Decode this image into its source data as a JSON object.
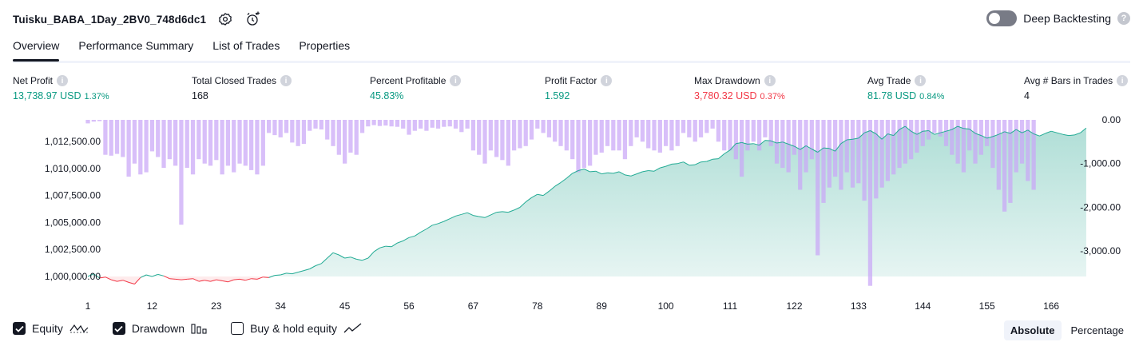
{
  "header": {
    "title": "Tuisku_BABA_1Day_2BV0_748d6dc1",
    "deep_backtesting_label": "Deep Backtesting",
    "deep_backtesting_enabled": false
  },
  "tabs": [
    {
      "label": "Overview",
      "active": true
    },
    {
      "label": "Performance Summary",
      "active": false
    },
    {
      "label": "List of Trades",
      "active": false
    },
    {
      "label": "Properties",
      "active": false
    }
  ],
  "metrics": [
    {
      "label": "Net Profit",
      "value": "13,738.97 USD",
      "pct": "1.37%",
      "color": "green"
    },
    {
      "label": "Total Closed Trades",
      "value": "168",
      "pct": "",
      "color": "neutral"
    },
    {
      "label": "Percent Profitable",
      "value": "45.83%",
      "pct": "",
      "color": "green"
    },
    {
      "label": "Profit Factor",
      "value": "1.592",
      "pct": "",
      "color": "green"
    },
    {
      "label": "Max Drawdown",
      "value": "3,780.32 USD",
      "pct": "0.37%",
      "color": "red"
    },
    {
      "label": "Avg Trade",
      "value": "81.78 USD",
      "pct": "0.84%",
      "color": "green"
    },
    {
      "label": "Avg # Bars in Trades",
      "value": "4",
      "pct": "",
      "color": "neutral"
    }
  ],
  "chart_data": {
    "type": "area",
    "x_ticks": [
      "1",
      "12",
      "23",
      "34",
      "45",
      "56",
      "67",
      "78",
      "89",
      "100",
      "111",
      "122",
      "133",
      "144",
      "155",
      "166"
    ],
    "y_left_ticks": [
      "1,012,500.00",
      "1,010,000.00",
      "1,007,500.00",
      "1,005,000.00",
      "1,002,500.00",
      "1,000,000.00"
    ],
    "y_right_ticks": [
      "0.00",
      "-1,000.00",
      "-2,000.00",
      "-3,000.00"
    ],
    "ylim_left": [
      999000,
      1014000
    ],
    "ylim_right": [
      -3800,
      0
    ],
    "xlim": [
      1,
      169
    ],
    "colors": {
      "equity_line": "#22ab94",
      "equity_fill": "#089981",
      "equity_below": "#f23645",
      "drawdown": "#c9a6f7",
      "drawdown_overlap": "#a4a9e0"
    },
    "series": [
      {
        "name": "Equity",
        "values": [
          1000000,
          1000250,
          999850,
          999950,
          999700,
          999550,
          999650,
          999450,
          999300,
          999900,
          1000150,
          1000000,
          1000200,
          1000050,
          999800,
          999750,
          999700,
          999750,
          999800,
          999550,
          999650,
          999550,
          999700,
          999600,
          999500,
          999700,
          999750,
          999650,
          999800,
          999750,
          999950,
          999900,
          1000100,
          1000150,
          1000300,
          1000250,
          1000400,
          1000550,
          1000700,
          1001000,
          1001200,
          1001700,
          1002200,
          1002000,
          1001700,
          1001800,
          1001600,
          1001500,
          1001700,
          1002300,
          1002650,
          1002800,
          1002750,
          1003100,
          1003300,
          1003600,
          1003750,
          1004100,
          1004400,
          1004750,
          1004900,
          1005100,
          1005350,
          1005600,
          1005750,
          1005900,
          1005650,
          1005550,
          1005450,
          1005700,
          1005950,
          1006000,
          1005950,
          1006150,
          1006400,
          1006900,
          1007300,
          1007600,
          1007500,
          1007900,
          1008350,
          1008700,
          1009100,
          1009550,
          1009800,
          1009950,
          1009700,
          1009750,
          1009500,
          1009600,
          1009550,
          1009700,
          1009400,
          1009300,
          1009500,
          1009700,
          1009800,
          1009750,
          1010050,
          1010200,
          1010400,
          1010450,
          1010600,
          1010300,
          1010350,
          1010600,
          1010650,
          1010850,
          1010900,
          1011350,
          1011700,
          1012300,
          1012400,
          1012250,
          1012300,
          1012150,
          1012600,
          1012550,
          1012350,
          1012450,
          1012250,
          1012050,
          1011750,
          1012100,
          1011800,
          1011500,
          1011900,
          1011850,
          1011600,
          1012300,
          1012650,
          1012700,
          1012800,
          1013300,
          1013500,
          1013200,
          1012700,
          1013200,
          1013050,
          1013600,
          1013900,
          1013450,
          1013150,
          1013450,
          1013500,
          1013150,
          1013300,
          1013450,
          1013600,
          1013900,
          1013700,
          1013650,
          1013250,
          1013050,
          1012800,
          1012950,
          1013150,
          1013400,
          1013250,
          1013600,
          1013300,
          1013550,
          1013200,
          1013000,
          1013250,
          1013450,
          1013300,
          1013150,
          1013050,
          1013100,
          1013300,
          1013738.97
        ]
      },
      {
        "name": "Drawdown",
        "values": [
          -80,
          -40,
          -30,
          -800,
          -820,
          -780,
          -850,
          -1300,
          -1000,
          -1250,
          -1200,
          -720,
          -850,
          -1100,
          -900,
          -1050,
          -2400,
          -1100,
          -1250,
          -900,
          -1000,
          -1050,
          -920,
          -1250,
          -1050,
          -1200,
          -1000,
          -1050,
          -1150,
          -1250,
          -1050,
          -300,
          -350,
          -400,
          -300,
          -520,
          -600,
          -550,
          -250,
          -200,
          -220,
          -450,
          -600,
          -800,
          -1000,
          -750,
          -800,
          -300,
          -150,
          -120,
          -140,
          -130,
          -150,
          -160,
          -200,
          -340,
          -250,
          -200,
          -250,
          -180,
          -200,
          -160,
          -150,
          -200,
          -280,
          -200,
          -700,
          -800,
          -1000,
          -700,
          -850,
          -920,
          -1050,
          -700,
          -650,
          -600,
          -450,
          -200,
          -300,
          -400,
          -500,
          -600,
          -700,
          -900,
          -1200,
          -1100,
          -1050,
          -800,
          -750,
          -600,
          -700,
          -700,
          -900,
          -600,
          -400,
          -500,
          -650,
          -700,
          -750,
          -600,
          -700,
          -600,
          -300,
          -400,
          -500,
          -400,
          -300,
          -200,
          -500,
          -700,
          -700,
          -900,
          -1300,
          -700,
          -500,
          -700,
          -400,
          -600,
          -1000,
          -1100,
          -1200,
          -800,
          -1600,
          -1200,
          -900,
          -3100,
          -1900,
          -1550,
          -1300,
          -1600,
          -1200,
          -1550,
          -1450,
          -1850,
          -3800,
          -1800,
          -1550,
          -1400,
          -1250,
          -1100,
          -1000,
          -900,
          -750,
          -600,
          -450,
          -300,
          -380,
          -600,
          -800,
          -1000,
          -1200,
          -700,
          -1000,
          -800,
          -600,
          -1100,
          -1600,
          -2100,
          -1900,
          -1200,
          -1000,
          -1400,
          -1600
        ]
      }
    ]
  },
  "legend": [
    {
      "label": "Equity",
      "checked": true,
      "icon": "equity-wave-icon"
    },
    {
      "label": "Drawdown",
      "checked": true,
      "icon": "drawdown-bars-icon"
    },
    {
      "label": "Buy & hold equity",
      "checked": false,
      "icon": "buy-hold-line-icon"
    }
  ],
  "modes": [
    {
      "label": "Absolute",
      "active": true
    },
    {
      "label": "Percentage",
      "active": false
    }
  ]
}
